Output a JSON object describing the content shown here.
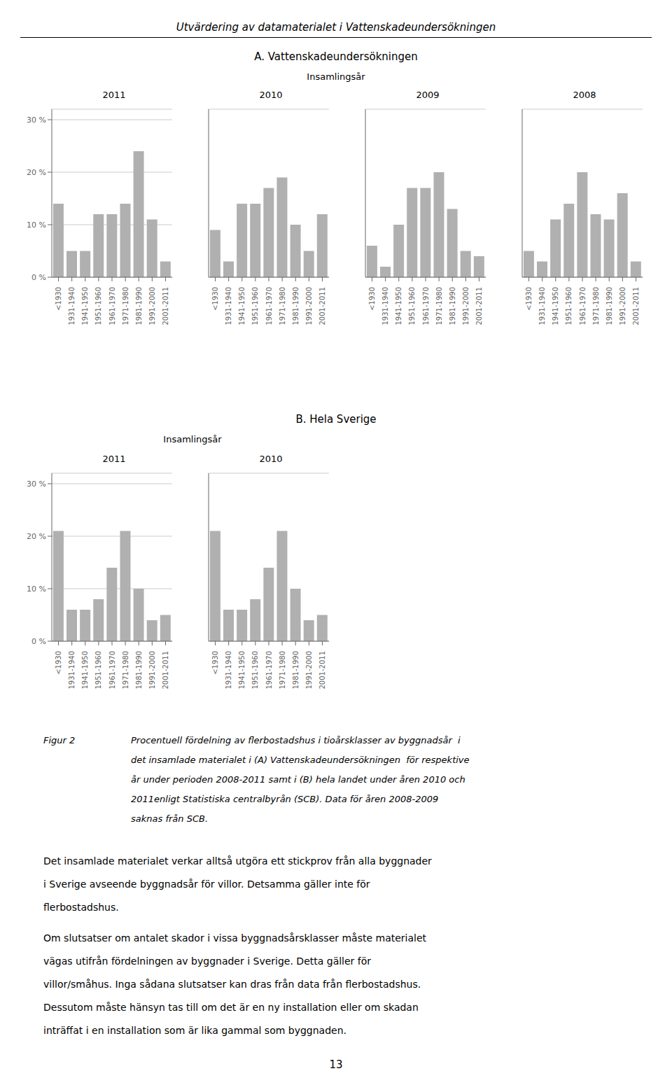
{
  "title": "Utvärdering av datamaterialet i Vattenskadeundersökningen",
  "annotations": [
    [
      "A. Vattenskadeundersökningen",
      "Insamlingsår"
    ],
    [
      "B. Hela Sverige",
      "Insamlingsår"
    ],
    [
      "Figur 2",
      "Procentuell fördelning av flerbostadshus i tioårsklasser av byggnadsår  i",
      "det insamlade materialet i (A) Vattenskadeundersökningen  för respektive",
      "år under perioden 2008-2011 samt i (B) hela landet under åren 2010 och",
      "2011enligt Statistiska centralbyrån (SCB). Data för åren 2008-2009",
      "saknas från SCB."
    ],
    [
      "Det insamlade materialet verkar alltså utgöra ett stickprov från alla byggnader",
      "i Sverige avseende byggnadsår för villor. Detsamma gäller inte för",
      "flerbostadshus."
    ],
    [
      "Om slutsatser om antalet skador i vissa byggnadsårsklasser måste materialet",
      "vägas utifrån fördelningen av byggnader i Sverige. Detta gäller för",
      "villor/småhus. Inga sådana slutsatser kan dras från data från flerbostadshus.",
      "Dessutom måste hänsyn tas till om det är en ny installation eller om skadan",
      "inträffat i en installation som är lika gammal som byggnaden."
    ],
    [
      "13"
    ]
  ],
  "chart_data": [
    {
      "type": "bar",
      "title": "2011",
      "categories": [
        "<1930",
        "1931-1940",
        "1941-1950",
        "1951-1960",
        "1961-1970",
        "1971-1980",
        "1981-1990",
        "1991-2000",
        "2001-2011"
      ],
      "values": [
        14,
        5,
        5,
        12,
        12,
        14,
        24,
        11,
        3
      ],
      "color": "#b0b0b0",
      "ylim": [
        0,
        32
      ],
      "yticks": [
        {
          "value": 0,
          "label": "0 %"
        },
        {
          "value": 10,
          "label": "10 %"
        },
        {
          "value": 20,
          "label": "20 %"
        },
        {
          "value": 30,
          "label": "30 %"
        }
      ],
      "grid": true
    },
    {
      "type": "bar",
      "title": "2010",
      "categories": [
        "<1930",
        "1931-1940",
        "1941-1950",
        "1951-1960",
        "1961-1970",
        "1971-1980",
        "1981-1990",
        "1991-2000",
        "2001-2011"
      ],
      "values": [
        9,
        3,
        14,
        14,
        17,
        19,
        10,
        5,
        12
      ],
      "color": "#b0b0b0",
      "ylim": [
        0,
        32
      ],
      "yticks": [
        0,
        10,
        20,
        30
      ],
      "grid": true,
      "tick_labels": "x"
    },
    {
      "type": "bar",
      "title": "2009",
      "categories": [
        "<1930",
        "1931-1940",
        "1941-1950",
        "1951-1960",
        "1961-1970",
        "1971-1980",
        "1981-1990",
        "1991-2000",
        "2001-2011"
      ],
      "values": [
        6,
        2,
        10,
        17,
        17,
        20,
        13,
        5,
        4
      ],
      "color": "#b0b0b0",
      "ylim": [
        0,
        32
      ],
      "yticks": [
        0,
        10,
        20,
        30
      ],
      "grid": true,
      "tick_labels": "x"
    },
    {
      "type": "bar",
      "title": "2008",
      "categories": [
        "<1930",
        "1931-1940",
        "1941-1950",
        "1951-1960",
        "1961-1970",
        "1971-1980",
        "1981-1990",
        "1991-2000",
        "2001-2011"
      ],
      "values": [
        5,
        3,
        11,
        14,
        20,
        12,
        11,
        16,
        3
      ],
      "color": "#b0b0b0",
      "ylim": [
        0,
        32
      ],
      "yticks": [
        0,
        10,
        20,
        30
      ],
      "grid": true,
      "tick_labels": "x"
    },
    {
      "type": "bar",
      "title": "2011",
      "categories": [
        "<1930",
        "1931-1940",
        "1941-1950",
        "1951-1960",
        "1961-1970",
        "1971-1980",
        "1981-1990",
        "1991-2000",
        "2001-2011"
      ],
      "values": [
        21,
        6,
        6,
        8,
        14,
        21,
        10,
        4,
        5
      ],
      "color": "#b0b0b0",
      "ylim": [
        0,
        32
      ],
      "yticks": [
        {
          "value": 0,
          "label": "0 %"
        },
        {
          "value": 10,
          "label": "10 %"
        },
        {
          "value": 20,
          "label": "20 %"
        },
        {
          "value": 30,
          "label": "30 %"
        }
      ],
      "grid": true
    },
    {
      "type": "bar",
      "title": "2010",
      "categories": [
        "<1930",
        "1931-1940",
        "1941-1950",
        "1951-1960",
        "1961-1970",
        "1971-1980",
        "1981-1990",
        "1991-2000",
        "2001-2011"
      ],
      "values": [
        21,
        6,
        6,
        8,
        14,
        21,
        10,
        4,
        5
      ],
      "color": "#b0b0b0",
      "ylim": [
        0,
        32
      ],
      "yticks": [
        0,
        10,
        20,
        30
      ],
      "grid": true,
      "tick_labels": "x"
    }
  ]
}
